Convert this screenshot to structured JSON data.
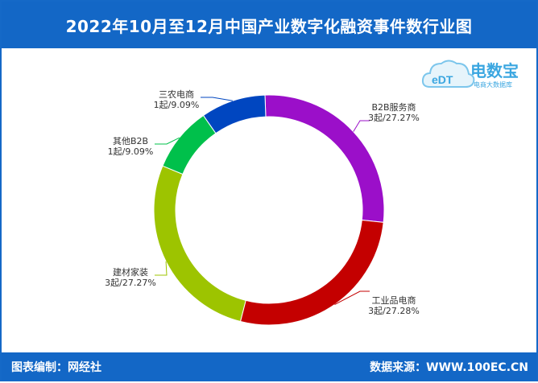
{
  "header": {
    "title": "2022年10月至12月中国产业数字化融资事件数行业图"
  },
  "footer": {
    "left_label": "图表编制：网经社",
    "right_label": "数据来源：WWW.100EC.CN"
  },
  "logo": {
    "name": "电数宝",
    "mark": "eDT",
    "subtitle": "电商大数据库"
  },
  "colors": {
    "header_bg": "#1367c6",
    "B2B服务商": "#9b0fc9",
    "工业品电商": "#c40000",
    "建材家装": "#9dc400",
    "其他B2B": "#00c04b",
    "三农电商": "#0046c0"
  },
  "chart_data": {
    "type": "pie",
    "donut": true,
    "title": "2022年10月至12月中国产业数字化融资事件数行业图",
    "series": [
      {
        "name": "B2B服务商",
        "value": 3,
        "value_label": "3起/27.27%",
        "percent": 27.27,
        "color": "#9b0fc9"
      },
      {
        "name": "工业品电商",
        "value": 3,
        "value_label": "3起/27.28%",
        "percent": 27.28,
        "color": "#c40000"
      },
      {
        "name": "建材家装",
        "value": 3,
        "value_label": "3起/27.27%",
        "percent": 27.27,
        "color": "#9dc400"
      },
      {
        "name": "其他B2B",
        "value": 1,
        "value_label": "1起/9.09%",
        "percent": 9.09,
        "color": "#00c04b"
      },
      {
        "name": "三农电商",
        "value": 1,
        "value_label": "1起/9.09%",
        "percent": 9.09,
        "color": "#0046c0"
      }
    ]
  }
}
